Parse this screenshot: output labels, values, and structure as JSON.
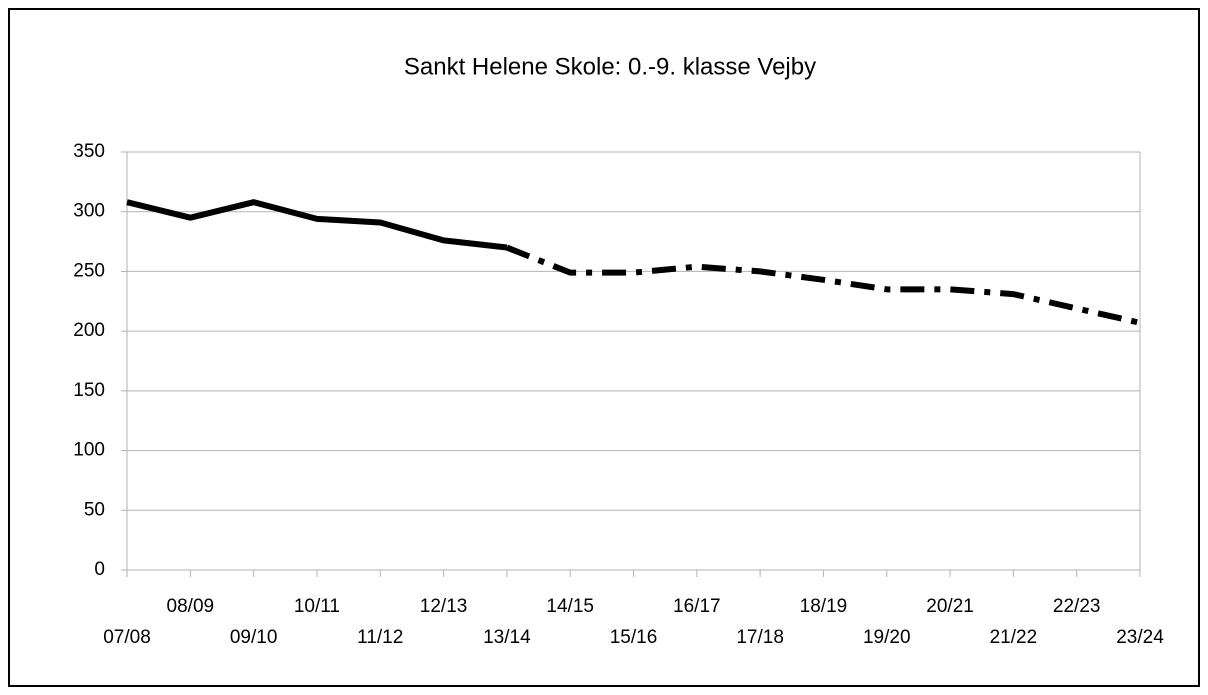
{
  "chart_data": {
    "type": "line",
    "title": "Sankt Helene Skole: 0.-9. klasse Vejby",
    "categories": [
      "07/08",
      "08/09",
      "09/10",
      "10/11",
      "11/12",
      "12/13",
      "13/14",
      "14/15",
      "15/16",
      "16/17",
      "17/18",
      "18/19",
      "19/20",
      "20/21",
      "21/22",
      "22/23",
      "23/24"
    ],
    "series": [
      {
        "color": "#000000",
        "style": "solid",
        "values": [
          308,
          295,
          308,
          294,
          291,
          276,
          270,
          null,
          null,
          null,
          null,
          null,
          null,
          null,
          null,
          null,
          null
        ]
      },
      {
        "color": "#000000",
        "style": "dashdot",
        "values": [
          null,
          null,
          null,
          null,
          null,
          null,
          270,
          249,
          249,
          254,
          250,
          243,
          235,
          235,
          231,
          219,
          207
        ]
      }
    ],
    "ylim": [
      0,
      350
    ],
    "yticks": [
      0,
      50,
      100,
      150,
      200,
      250,
      300,
      350
    ],
    "grid": true
  }
}
